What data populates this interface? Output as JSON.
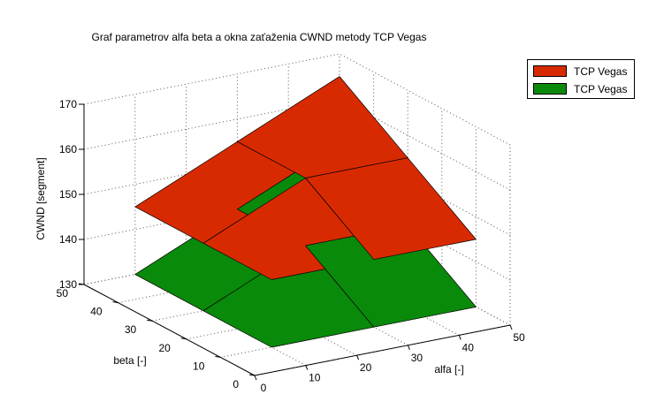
{
  "chart_data": {
    "type": "surface3d",
    "title": "Graf parametrov alfa beta a okna zaťaženia CWND metody TCP Vegas",
    "xlabel": "alfa [-]",
    "ylabel": "beta [-]",
    "zlabel": "CWND [segment]",
    "xlim": [
      0,
      50
    ],
    "ylim": [
      0,
      50
    ],
    "zlim": [
      130,
      170
    ],
    "xticks": [
      "0",
      "10",
      "20",
      "30",
      "40",
      "50"
    ],
    "yticks": [
      "0",
      "10",
      "20",
      "30",
      "40",
      "50"
    ],
    "zticks": [
      "130",
      "140",
      "150",
      "160",
      "170"
    ],
    "grid": "on",
    "legend_position": "top-right",
    "series": [
      {
        "name": "TCP Vegas",
        "color": "#d82a00",
        "x": [
          10,
          30,
          50
        ],
        "y": [
          10,
          30,
          50
        ],
        "z": [
          [
            145,
            145,
            145
          ],
          [
            145,
            155,
            155
          ],
          [
            145,
            155,
            165
          ]
        ]
      },
      {
        "name": "TCP Vegas",
        "color": "#0a8a0a",
        "x": [
          10,
          30,
          50
        ],
        "y": [
          10,
          30,
          50
        ],
        "z": [
          [
            130,
            130,
            130
          ],
          [
            130,
            140,
            140
          ],
          [
            130,
            140,
            150
          ]
        ]
      }
    ]
  }
}
